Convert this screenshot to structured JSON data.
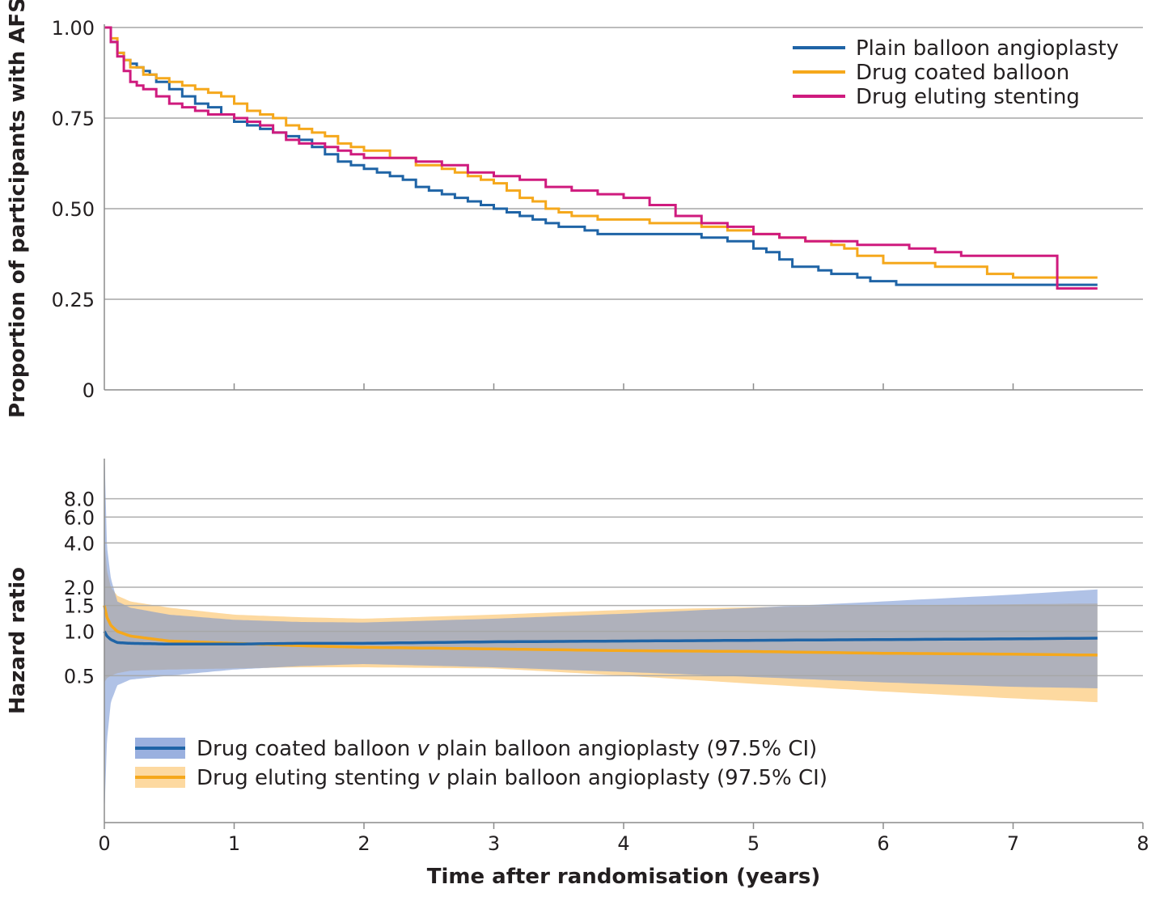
{
  "chart_data": [
    {
      "type": "line",
      "panel": "top",
      "ylabel": "Proportion of participants with AFS",
      "ylim": [
        0,
        1.0
      ],
      "xlim": [
        0,
        8
      ],
      "yticks": [
        {
          "value": 0,
          "label": "0"
        },
        {
          "value": 0.25,
          "label": "0.25"
        },
        {
          "value": 0.5,
          "label": "0.50"
        },
        {
          "value": 0.75,
          "label": "0.75"
        },
        {
          "value": 1.0,
          "label": "1.00"
        }
      ],
      "grid": true,
      "legend_position": "top-right",
      "series": [
        {
          "name": "Plain balloon angioplasty",
          "color": "#1f64a6",
          "x": [
            0,
            0.05,
            0.1,
            0.15,
            0.2,
            0.25,
            0.3,
            0.35,
            0.4,
            0.5,
            0.6,
            0.7,
            0.8,
            0.9,
            1.0,
            1.1,
            1.2,
            1.3,
            1.4,
            1.5,
            1.6,
            1.7,
            1.8,
            1.9,
            2.0,
            2.1,
            2.2,
            2.3,
            2.4,
            2.5,
            2.6,
            2.7,
            2.8,
            2.9,
            3.0,
            3.1,
            3.2,
            3.3,
            3.4,
            3.5,
            3.6,
            3.7,
            3.8,
            3.9,
            4.0,
            4.2,
            4.4,
            4.6,
            4.8,
            5.0,
            5.1,
            5.2,
            5.3,
            5.4,
            5.5,
            5.6,
            5.7,
            5.8,
            5.9,
            6.0,
            6.1,
            6.2,
            6.3,
            6.5,
            7.0,
            7.3,
            7.65
          ],
          "y": [
            1.0,
            0.96,
            0.93,
            0.91,
            0.9,
            0.89,
            0.88,
            0.87,
            0.85,
            0.83,
            0.81,
            0.79,
            0.78,
            0.76,
            0.74,
            0.73,
            0.72,
            0.71,
            0.7,
            0.69,
            0.67,
            0.65,
            0.63,
            0.62,
            0.61,
            0.6,
            0.59,
            0.58,
            0.56,
            0.55,
            0.54,
            0.53,
            0.52,
            0.51,
            0.5,
            0.49,
            0.48,
            0.47,
            0.46,
            0.45,
            0.45,
            0.44,
            0.43,
            0.43,
            0.43,
            0.43,
            0.43,
            0.42,
            0.41,
            0.39,
            0.38,
            0.36,
            0.34,
            0.34,
            0.33,
            0.32,
            0.32,
            0.31,
            0.3,
            0.3,
            0.29,
            0.29,
            0.29,
            0.29,
            0.29,
            0.29,
            0.29
          ]
        },
        {
          "name": "Drug coated balloon",
          "color": "#f5a81c",
          "x": [
            0,
            0.05,
            0.1,
            0.15,
            0.2,
            0.3,
            0.4,
            0.5,
            0.6,
            0.7,
            0.8,
            0.9,
            1.0,
            1.1,
            1.2,
            1.3,
            1.4,
            1.5,
            1.6,
            1.7,
            1.8,
            1.9,
            2.0,
            2.2,
            2.4,
            2.6,
            2.7,
            2.8,
            2.9,
            3.0,
            3.1,
            3.2,
            3.3,
            3.4,
            3.5,
            3.6,
            3.8,
            4.0,
            4.2,
            4.4,
            4.6,
            4.8,
            5.0,
            5.2,
            5.4,
            5.6,
            5.7,
            5.8,
            6.0,
            6.2,
            6.4,
            6.6,
            6.8,
            7.0,
            7.3,
            7.65
          ],
          "y": [
            1.0,
            0.97,
            0.93,
            0.91,
            0.89,
            0.87,
            0.86,
            0.85,
            0.84,
            0.83,
            0.82,
            0.81,
            0.79,
            0.77,
            0.76,
            0.75,
            0.73,
            0.72,
            0.71,
            0.7,
            0.68,
            0.67,
            0.66,
            0.64,
            0.62,
            0.61,
            0.6,
            0.59,
            0.58,
            0.57,
            0.55,
            0.53,
            0.52,
            0.5,
            0.49,
            0.48,
            0.47,
            0.47,
            0.46,
            0.46,
            0.45,
            0.44,
            0.43,
            0.42,
            0.41,
            0.4,
            0.39,
            0.37,
            0.35,
            0.35,
            0.34,
            0.34,
            0.32,
            0.31,
            0.31,
            0.31
          ]
        },
        {
          "name": "Drug eluting stenting",
          "color": "#cf1b7e",
          "x": [
            0,
            0.05,
            0.1,
            0.15,
            0.2,
            0.25,
            0.3,
            0.4,
            0.5,
            0.6,
            0.7,
            0.8,
            0.9,
            1.0,
            1.1,
            1.2,
            1.3,
            1.4,
            1.5,
            1.6,
            1.7,
            1.8,
            1.9,
            2.0,
            2.2,
            2.4,
            2.6,
            2.8,
            3.0,
            3.2,
            3.4,
            3.6,
            3.8,
            4.0,
            4.2,
            4.4,
            4.6,
            4.8,
            5.0,
            5.2,
            5.4,
            5.6,
            5.8,
            6.0,
            6.2,
            6.4,
            6.6,
            6.8,
            7.0,
            7.2,
            7.33,
            7.34,
            7.65
          ],
          "y": [
            1.0,
            0.96,
            0.92,
            0.88,
            0.85,
            0.84,
            0.83,
            0.81,
            0.79,
            0.78,
            0.77,
            0.76,
            0.76,
            0.75,
            0.74,
            0.73,
            0.71,
            0.69,
            0.68,
            0.68,
            0.67,
            0.66,
            0.65,
            0.64,
            0.64,
            0.63,
            0.62,
            0.6,
            0.59,
            0.58,
            0.56,
            0.55,
            0.54,
            0.53,
            0.51,
            0.48,
            0.46,
            0.45,
            0.43,
            0.42,
            0.41,
            0.41,
            0.4,
            0.4,
            0.39,
            0.38,
            0.37,
            0.37,
            0.37,
            0.37,
            0.37,
            0.28,
            0.28
          ]
        }
      ]
    },
    {
      "type": "area",
      "panel": "bottom",
      "xlabel": "Time after randomisation (years)",
      "ylabel": "Hazard ratio",
      "yscale": "log",
      "ylim": [
        0.05,
        15
      ],
      "xlim": [
        0,
        8
      ],
      "xticks": [
        "0",
        "1",
        "2",
        "3",
        "4",
        "5",
        "6",
        "7",
        "8"
      ],
      "yticks": [
        {
          "value": 0.5,
          "label": "0.5"
        },
        {
          "value": 1.0,
          "label": "1.0"
        },
        {
          "value": 1.5,
          "label": "1.5"
        },
        {
          "value": 2.0,
          "label": "2.0"
        },
        {
          "value": 4.0,
          "label": "4.0"
        },
        {
          "value": 6.0,
          "label": "6.0"
        },
        {
          "value": 8.0,
          "label": "8.0"
        }
      ],
      "grid": true,
      "legend_position": "bottom-left",
      "series": [
        {
          "name": "Drug coated balloon",
          "legend_prefix": "Drug coated balloon ",
          "legend_italic": "v",
          "legend_suffix": " plain balloon angioplasty (97.5% CI)",
          "line_color": "#1f64a6",
          "band_color": "#6f8fd2",
          "x": [
            0,
            0.02,
            0.05,
            0.1,
            0.2,
            0.5,
            1,
            1.5,
            2,
            3,
            4,
            5,
            6,
            7,
            7.65
          ],
          "hr": [
            1.0,
            0.93,
            0.88,
            0.84,
            0.83,
            0.82,
            0.82,
            0.83,
            0.83,
            0.85,
            0.86,
            0.87,
            0.88,
            0.89,
            0.9
          ],
          "lower": [
            0.055,
            0.18,
            0.33,
            0.43,
            0.47,
            0.5,
            0.55,
            0.58,
            0.6,
            0.57,
            0.53,
            0.49,
            0.45,
            0.42,
            0.41
          ],
          "upper": [
            18,
            3.8,
            2.3,
            1.6,
            1.45,
            1.3,
            1.2,
            1.16,
            1.15,
            1.22,
            1.32,
            1.45,
            1.6,
            1.78,
            1.93
          ]
        },
        {
          "name": "Drug eluting stenting",
          "legend_prefix": "Drug eluting stenting ",
          "legend_italic": "v",
          "legend_suffix": " plain balloon angioplasty (97.5% CI)",
          "line_color": "#f5a81c",
          "band_color": "#fdd9a0",
          "x": [
            0,
            0.02,
            0.05,
            0.1,
            0.2,
            0.5,
            1,
            1.5,
            2,
            3,
            4,
            5,
            6,
            7,
            7.65
          ],
          "hr": [
            1.5,
            1.25,
            1.1,
            1.0,
            0.93,
            0.86,
            0.83,
            0.8,
            0.78,
            0.76,
            0.74,
            0.73,
            0.71,
            0.7,
            0.69
          ],
          "lower": [
            0.45,
            0.48,
            0.5,
            0.52,
            0.54,
            0.55,
            0.56,
            0.57,
            0.57,
            0.56,
            0.5,
            0.44,
            0.39,
            0.35,
            0.33
          ],
          "upper": [
            4.2,
            2.6,
            2.0,
            1.75,
            1.6,
            1.45,
            1.3,
            1.25,
            1.22,
            1.3,
            1.4,
            1.46,
            1.5,
            1.53,
            1.55
          ]
        }
      ]
    }
  ]
}
